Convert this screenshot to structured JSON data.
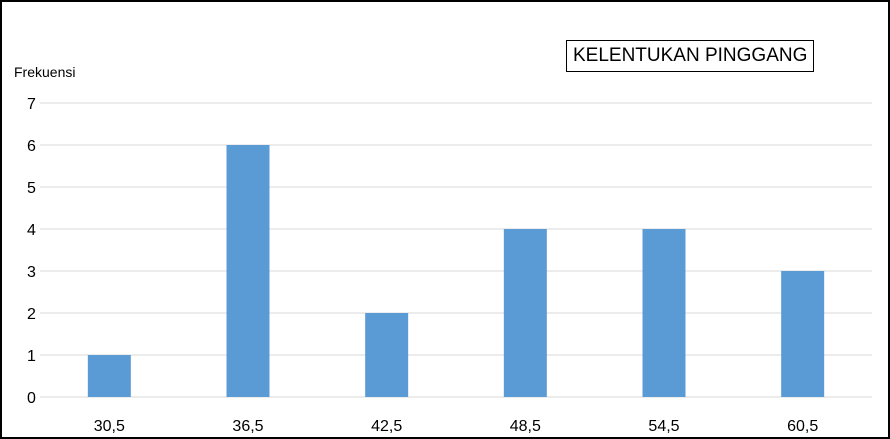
{
  "chart_data": {
    "type": "bar",
    "title": "KELENTUKAN PINGGANG",
    "ylabel": "Frekuensi",
    "xlabel": "",
    "categories": [
      "30,5",
      "36,5",
      "42,5",
      "48,5",
      "54,5",
      "60,5"
    ],
    "values": [
      1,
      6,
      2,
      4,
      4,
      3
    ],
    "ylim": [
      0,
      7
    ],
    "yticks": [
      "0",
      "1",
      "2",
      "3",
      "4",
      "5",
      "6",
      "7"
    ],
    "grid": true,
    "bar_color": "#5b9bd5",
    "grid_color": "#d9d9d9"
  }
}
